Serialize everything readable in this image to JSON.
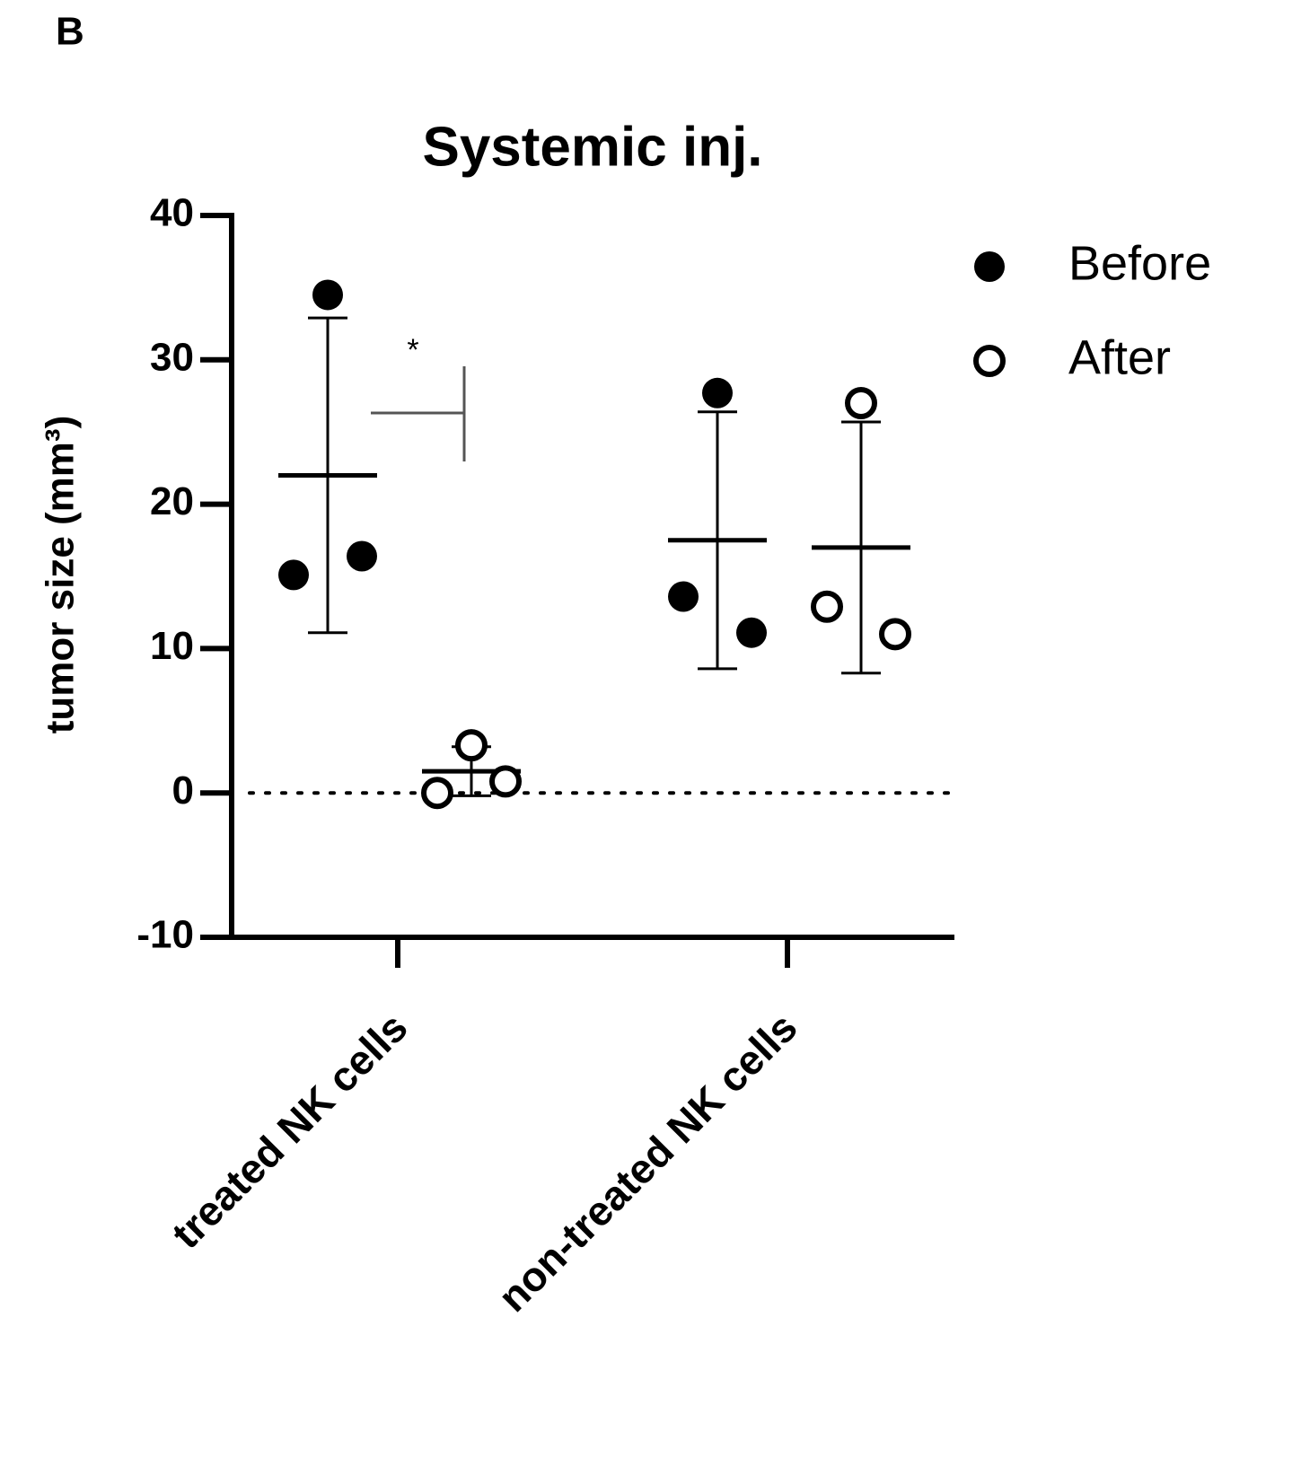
{
  "panel_label": "B",
  "chart_data": {
    "type": "dotplot",
    "title": "Systemic inj.",
    "y_label": "tumor size (mm³)",
    "categories": [
      "treated NK cells",
      "non-treated NK cells"
    ],
    "series": [
      {
        "name": "Before",
        "color": "#000000",
        "filled": true,
        "points": [
          [
            34.5,
            15.1,
            16.4
          ],
          [
            27.7,
            13.6,
            11.1
          ]
        ],
        "mean": [
          22,
          17.5
        ],
        "sd": [
          10.9,
          8.9
        ]
      },
      {
        "name": "After",
        "color": "#000000",
        "filled": false,
        "points": [
          [
            3.3,
            0,
            0.8
          ],
          [
            27,
            12.9,
            11
          ]
        ],
        "mean": [
          1.5,
          17
        ],
        "sd": [
          1.7,
          8.7
        ]
      }
    ],
    "reference_line": 0,
    "annotations": [
      {
        "text": "*"
      }
    ],
    "ylim": [
      -10,
      40
    ],
    "yticks": [
      -10,
      0,
      10,
      20,
      30,
      40
    ],
    "legend": "right"
  }
}
